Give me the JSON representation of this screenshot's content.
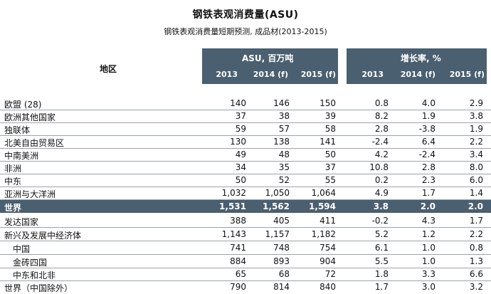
{
  "title": "钢铁表观消费量(ASU)",
  "subtitle": "钢铁表观消费量短期预测, 成品材(2013-2015)",
  "header": {
    "region_label": "地区",
    "asu_title": "ASU, 百万吨",
    "growth_title": "增长率, %",
    "years": [
      "2013",
      "2014 (f)",
      "2015 (f)"
    ]
  },
  "rows": [
    {
      "region": "欧盟 (28)",
      "asu": [
        "140",
        "146",
        "150"
      ],
      "growth": [
        "0.8",
        "4.0",
        "2.9"
      ]
    },
    {
      "region": "欧洲其他国家",
      "asu": [
        "37",
        "38",
        "39"
      ],
      "growth": [
        "8.2",
        "1.9",
        "3.8"
      ]
    },
    {
      "region": "独联体",
      "asu": [
        "59",
        "57",
        "58"
      ],
      "growth": [
        "2.8",
        "-3.8",
        "1.9"
      ]
    },
    {
      "region": "北美自由贸易区",
      "asu": [
        "130",
        "138",
        "141"
      ],
      "growth": [
        "-2.4",
        "6.4",
        "2.2"
      ]
    },
    {
      "region": "中南美洲",
      "asu": [
        "49",
        "48",
        "50"
      ],
      "growth": [
        "4.2",
        "-2.4",
        "3.4"
      ]
    },
    {
      "region": "非洲",
      "asu": [
        "34",
        "35",
        "37"
      ],
      "growth": [
        "10.8",
        "2.8",
        "8.0"
      ]
    },
    {
      "region": "中东",
      "asu": [
        "50",
        "52",
        "55"
      ],
      "growth": [
        "0.2",
        "2.3",
        "6.0"
      ]
    },
    {
      "region": "亚洲与大洋洲",
      "asu": [
        "1,032",
        "1,050",
        "1,064"
      ],
      "growth": [
        "4.9",
        "1.7",
        "1.4"
      ]
    },
    {
      "region": "世界",
      "asu": [
        "1,531",
        "1,562",
        "1,594"
      ],
      "growth": [
        "3.8",
        "2.0",
        "2.0"
      ]
    },
    {
      "region": "发达国家",
      "asu": [
        "388",
        "405",
        "411"
      ],
      "growth": [
        "-0.2",
        "4.3",
        "1.7"
      ]
    },
    {
      "region": "新兴及发展中经济体",
      "asu": [
        "1,143",
        "1,157",
        "1,182"
      ],
      "growth": [
        "5.2",
        "1.2",
        "2.2"
      ]
    },
    {
      "region": "中国",
      "asu": [
        "741",
        "748",
        "754"
      ],
      "growth": [
        "6.1",
        "1.0",
        "0.8"
      ]
    },
    {
      "region": "金砖四国",
      "asu": [
        "884",
        "893",
        "904"
      ],
      "growth": [
        "5.5",
        "1.0",
        "1.3"
      ]
    },
    {
      "region": "中东和北非",
      "asu": [
        "65",
        "68",
        "72"
      ],
      "growth": [
        "1.8",
        "3.3",
        "6.6"
      ]
    },
    {
      "region": "世界（中国除外）",
      "asu": [
        "790",
        "814",
        "840"
      ],
      "growth": [
        "1.7",
        "3.0",
        "3.2"
      ]
    }
  ]
}
